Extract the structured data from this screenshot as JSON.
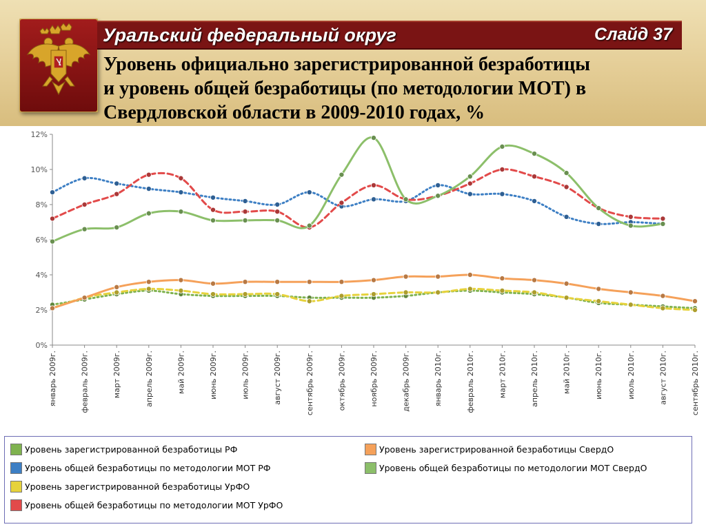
{
  "header": {
    "region_title": "Уральский федеральный округ",
    "slide_label": "Слайд 37",
    "heading_lines": [
      "Уровень официально зарегистрированной безработицы",
      "и уровень общей безработицы (по методологии МОТ) в",
      "Свердловской области в 2009-2010 годах, %"
    ]
  },
  "emblem": {
    "icon": "russian-coat-of-arms",
    "background": "#8b1616",
    "figure_color": "#d4a52c"
  },
  "chart_data": {
    "type": "line",
    "title": "",
    "xlabel": "",
    "ylabel": "",
    "ylim": [
      0,
      12
    ],
    "yticks": [
      "0%",
      "2%",
      "4%",
      "6%",
      "8%",
      "10%",
      "12%"
    ],
    "grid": false,
    "legend_position": "bottom",
    "categories": [
      "январь 2009г.",
      "февраль 2009г.",
      "март 2009г.",
      "апрель 2009г.",
      "май 2009г.",
      "июнь 2009г.",
      "июль 2009г.",
      "август 2009г.",
      "сентябрь 2009г.",
      "октябрь 2009г.",
      "ноябрь 2009г.",
      "декабрь 2009г.",
      "январь 2010г.",
      "февраль 2010г.",
      "март 2010г.",
      "апрель 2010г.",
      "май 2010г.",
      "июнь 2010г.",
      "июль 2010г.",
      "август 2010г.",
      "сентябрь 2010г."
    ],
    "series": [
      {
        "name": "Уровень зарегистрированной безработицы РФ",
        "color": "#7fb24f",
        "line": "dotted",
        "values": [
          2.3,
          2.6,
          2.9,
          3.1,
          2.9,
          2.8,
          2.8,
          2.8,
          2.7,
          2.7,
          2.7,
          2.8,
          3.0,
          3.1,
          3.0,
          2.9,
          2.7,
          2.4,
          2.3,
          2.2,
          2.1
        ]
      },
      {
        "name": "Уровень общей безработицы по методологии МОТ РФ",
        "color": "#3d7fc4",
        "line": "dotted",
        "values": [
          8.7,
          9.5,
          9.2,
          8.9,
          8.7,
          8.4,
          8.2,
          8.0,
          8.7,
          7.9,
          8.3,
          8.2,
          9.1,
          8.6,
          8.6,
          8.2,
          7.3,
          6.9,
          7.0,
          6.9,
          null
        ]
      },
      {
        "name": "Уровень зарегистрированной безработицы УрФО",
        "color": "#e6d23c",
        "line": "dashed",
        "values": [
          2.1,
          2.7,
          3.0,
          3.2,
          3.1,
          2.9,
          2.9,
          2.9,
          2.5,
          2.8,
          2.9,
          3.0,
          3.0,
          3.2,
          3.1,
          3.0,
          2.7,
          2.5,
          2.3,
          2.1,
          2.0
        ]
      },
      {
        "name": "Уровень общей безработицы по методологии МОТ УрФО",
        "color": "#e24a4a",
        "line": "dashed",
        "values": [
          7.2,
          8.0,
          8.6,
          9.7,
          9.5,
          7.7,
          7.6,
          7.6,
          6.7,
          8.1,
          9.1,
          8.3,
          8.5,
          9.2,
          10.0,
          9.6,
          9.0,
          7.8,
          7.3,
          7.2,
          null
        ]
      },
      {
        "name": "Уровень зарегистрированной безработицы  СвердО",
        "color": "#f5a15a",
        "line": "solid",
        "values": [
          2.1,
          2.7,
          3.3,
          3.6,
          3.7,
          3.5,
          3.6,
          3.6,
          3.6,
          3.6,
          3.7,
          3.9,
          3.9,
          4.0,
          3.8,
          3.7,
          3.5,
          3.2,
          3.0,
          2.8,
          2.5
        ]
      },
      {
        "name": "Уровень общей безработицы по методологии МОТ  СвердО",
        "color": "#8cbf6a",
        "line": "solid",
        "values": [
          5.9,
          6.6,
          6.7,
          7.5,
          7.6,
          7.1,
          7.1,
          7.1,
          6.8,
          9.7,
          11.8,
          8.3,
          8.5,
          9.6,
          11.3,
          10.9,
          9.8,
          7.8,
          6.8,
          6.9,
          null
        ]
      }
    ]
  },
  "legend": {
    "col1": [
      {
        "label": "Уровень зарегистрированной безработицы РФ",
        "color": "#7fb24f"
      },
      {
        "label": "Уровень общей безработицы по методологии МОТ РФ",
        "color": "#3d7fc4"
      },
      {
        "label": "Уровень зарегистрированной безработицы УрФО",
        "color": "#e6d23c"
      },
      {
        "label": "Уровень общей безработицы по методологии МОТ УрФО",
        "color": "#e24a4a"
      }
    ],
    "col2": [
      {
        "label": "Уровень зарегистрированной безработицы  СвердО",
        "color": "#f5a15a"
      },
      {
        "label": "Уровень общей безработицы по методологии МОТ  СвердО",
        "color": "#8cbf6a"
      }
    ]
  }
}
